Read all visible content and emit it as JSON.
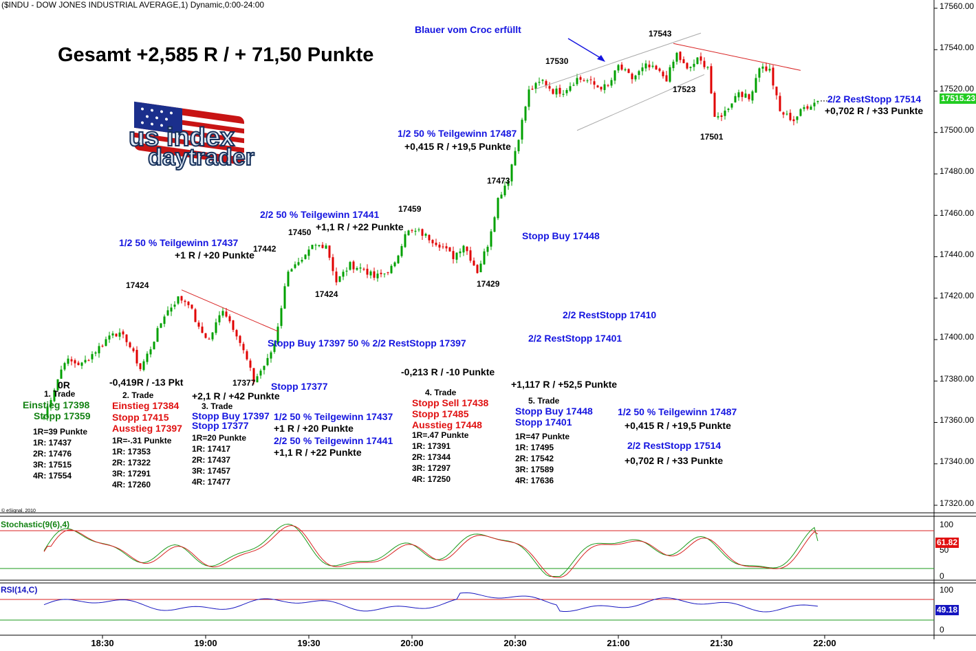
{
  "header": {
    "title": "($INDU - DOW JONES INDUSTRIAL AVERAGE,1) Dynamic,0:00-24:00"
  },
  "headline": "Gesamt +2,585 R / + 71,50 Punkte",
  "logo": {
    "line1": "us index",
    "line2": "daytrader",
    "icon": "us-flag"
  },
  "copyright": "© eSignal, 2010",
  "colors": {
    "up": "#00a000",
    "down": "#e00000",
    "blue_text": "#1515e0",
    "green_text": "#128212",
    "red_text": "#e01010",
    "price_tag": "#22cc22",
    "stoch_tag": "#e01010",
    "rsi_tag": "#1515c0"
  },
  "price_tag": "17515.23",
  "price_axis_ticks": [
    "17560.00",
    "17540.00",
    "17520.00",
    "17500.00",
    "17480.00",
    "17460.00",
    "17440.00",
    "17420.00",
    "17400.00",
    "17380.00",
    "17360.00",
    "17340.00",
    "17320.00"
  ],
  "time_axis_ticks": [
    "18:30",
    "19:00",
    "19:30",
    "20:00",
    "20:30",
    "21:00",
    "21:30",
    "22:00"
  ],
  "stoch": {
    "title": "Stochastic(9(6),4)",
    "ticks": [
      "100",
      "50",
      "0"
    ],
    "value": "61.82"
  },
  "rsi": {
    "title": "RSI(14,C)",
    "ticks": [
      "100",
      "50",
      "0"
    ],
    "value": "49.18"
  },
  "price_labels": [
    {
      "text": "17424"
    },
    {
      "text": "17377"
    },
    {
      "text": "17442"
    },
    {
      "text": "17450"
    },
    {
      "text": "17424"
    },
    {
      "text": "17459"
    },
    {
      "text": "17429"
    },
    {
      "text": "17473"
    },
    {
      "text": "17530"
    },
    {
      "text": "17543"
    },
    {
      "text": "17523"
    },
    {
      "text": "17501"
    }
  ],
  "notes": {
    "blauer": "Blauer vom Croc erfüllt",
    "t1_tg_a": "1/2 50 % Teilgewinn 17437",
    "t1_tg_b": "+1 R / +20 Punkte",
    "t2_tg_a": "2/2 50 % Teilgewinn 17441",
    "t2_tg_b": "+1,1 R / +22 Punkte",
    "t5_tg_a": "1/2 50 % Teilgewinn 17487",
    "t5_tg_b": "+0,415 R / +19,5 Punkte",
    "stopp_buy_448": "Stopp Buy 17448",
    "rest_410": "2/2 RestStopp 17410",
    "rest_401": "2/2 RestStopp 17401",
    "stopp_buy_397": "Stopp Buy 17397  50 % 2/2 RestStopp 17397",
    "stopp_377": "Stopp 17377",
    "minus_0213": "-0,213 R / -10 Punkte",
    "plus_1117": "+1,117 R / +52,5 Punkte",
    "rest_514_a": "2/2 RestStopp 17514",
    "rest_514_b": "+0,702 R / +33 Punkte",
    "zero_r": "0R",
    "minus_0419": "-0,419R / -13 Pkt",
    "plus_21": "+2,1 R / +42 Punkte"
  },
  "trade1": {
    "head": "1. Trade",
    "entry": "Einstieg 17398",
    "stop": "Stopp 17359",
    "lines": [
      "1R=39 Punkte",
      "1R: 17437",
      "2R: 17476",
      "3R: 17515",
      "4R: 17554"
    ]
  },
  "trade2": {
    "head": "2. Trade",
    "entry": "Einstieg 17384",
    "stop": "Stopp 17415",
    "exit": "Ausstieg 17397",
    "lines": [
      "1R=-.31 Punkte",
      "1R: 17353",
      "2R: 17322",
      "3R: 17291",
      "4R: 17260"
    ]
  },
  "trade3": {
    "head": "3. Trade",
    "entry": "Stopp Buy 17397",
    "stop": "Stopp 17377",
    "lines": [
      "1R=20 Punkte",
      "1R: 17417",
      "2R: 17437",
      "3R: 17457",
      "4R: 17477"
    ]
  },
  "trade3_results": {
    "a": "1/2 50 % Teilgewinn 17437",
    "b": "+1 R / +20 Punkte",
    "c": "2/2 50 % Teilgewinn 17441",
    "d": "+1,1 R / +22 Punkte"
  },
  "trade4": {
    "head": "4. Trade",
    "entry": "Stopp Sell 17438",
    "stop": "Stopp 17485",
    "exit": "Ausstieg 17448",
    "lines": [
      "1R=.47 Punkte",
      "1R: 17391",
      "2R: 17344",
      "3R: 17297",
      "4R: 17250"
    ]
  },
  "trade5": {
    "head": "5. Trade",
    "entry": "Stopp Buy 17448",
    "stop": "Stopp 17401",
    "lines": [
      "1R=47 Punkte",
      "1R: 17495",
      "2R: 17542",
      "3R: 17589",
      "4R: 17636"
    ]
  },
  "trade5_results": {
    "a": "1/2 50 % Teilgewinn 17487",
    "b": "+0,415 R / +19,5 Punkte",
    "c": "2/2 RestStopp 17514",
    "d": "+0,702 R / +33 Punkte"
  },
  "chart_data": {
    "type": "candlestick",
    "title": "($INDU - DOW JONES INDUSTRIAL AVERAGE,1) Dynamic,0:00-24:00",
    "interval_minutes": 1,
    "ylim": [
      17315,
      17562
    ],
    "x_start": "18:13",
    "x_end": "21:58",
    "anchors": [
      [
        "18:13",
        17363
      ],
      [
        "18:19",
        17390
      ],
      [
        "18:24",
        17388
      ],
      [
        "18:30",
        17398
      ],
      [
        "18:33",
        17404
      ],
      [
        "18:37",
        17400
      ],
      [
        "18:41",
        17386
      ],
      [
        "18:44",
        17396
      ],
      [
        "18:48",
        17412
      ],
      [
        "18:52",
        17420
      ],
      [
        "18:55",
        17418
      ],
      [
        "18:58",
        17405
      ],
      [
        "19:01",
        17400
      ],
      [
        "19:05",
        17415
      ],
      [
        "19:09",
        17403
      ],
      [
        "19:12",
        17390
      ],
      [
        "19:14",
        17380
      ],
      [
        "19:18",
        17390
      ],
      [
        "19:20",
        17398
      ],
      [
        "19:24",
        17434
      ],
      [
        "19:28",
        17437
      ],
      [
        "19:31",
        17445
      ],
      [
        "19:35",
        17446
      ],
      [
        "19:38",
        17428
      ],
      [
        "19:42",
        17436
      ],
      [
        "19:46",
        17434
      ],
      [
        "19:49",
        17430
      ],
      [
        "19:52",
        17432
      ],
      [
        "19:55",
        17436
      ],
      [
        "19:58",
        17452
      ],
      [
        "20:02",
        17452
      ],
      [
        "20:05",
        17449
      ],
      [
        "20:08",
        17446
      ],
      [
        "20:12",
        17440
      ],
      [
        "20:15",
        17446
      ],
      [
        "20:19",
        17433
      ],
      [
        "20:22",
        17446
      ],
      [
        "20:25",
        17468
      ],
      [
        "20:28",
        17478
      ],
      [
        "20:31",
        17498
      ],
      [
        "20:34",
        17520
      ],
      [
        "20:38",
        17525
      ],
      [
        "20:41",
        17520
      ],
      [
        "20:44",
        17520
      ],
      [
        "20:48",
        17526
      ],
      [
        "20:51",
        17525
      ],
      [
        "20:54",
        17522
      ],
      [
        "20:57",
        17522
      ],
      [
        "21:00",
        17532
      ],
      [
        "21:04",
        17526
      ],
      [
        "21:08",
        17532
      ],
      [
        "21:11",
        17530
      ],
      [
        "21:14",
        17526
      ],
      [
        "21:17",
        17538
      ],
      [
        "21:20",
        17530
      ],
      [
        "21:23",
        17535
      ],
      [
        "21:26",
        17532
      ],
      [
        "21:28",
        17506
      ],
      [
        "21:31",
        17510
      ],
      [
        "21:35",
        17520
      ],
      [
        "21:38",
        17516
      ],
      [
        "21:41",
        17532
      ],
      [
        "21:44",
        17530
      ],
      [
        "21:47",
        17510
      ],
      [
        "21:51",
        17506
      ],
      [
        "21:54",
        17512
      ],
      [
        "21:58",
        17515.23
      ]
    ],
    "annotated_levels": [
      17424,
      17377,
      17442,
      17450,
      17424,
      17459,
      17429,
      17473,
      17530,
      17543,
      17523,
      17501
    ],
    "trendlines": [
      {
        "color": "red",
        "from": [
          "18:53",
          17424
        ],
        "to": [
          "19:21",
          17404
        ]
      },
      {
        "color": "red",
        "from": [
          "21:16",
          17543
        ],
        "to": [
          "21:53",
          17530
        ]
      },
      {
        "color": "gray",
        "from": [
          "20:36",
          17521
        ],
        "to": [
          "21:24",
          17548
        ]
      },
      {
        "color": "gray",
        "from": [
          "20:48",
          17501
        ],
        "to": [
          "21:25",
          17528
        ]
      }
    ],
    "indicators": [
      {
        "name": "Stochastic(9(6),4)",
        "levels": [
          80,
          20
        ],
        "last": 61.82
      },
      {
        "name": "RSI(14,C)",
        "levels": [
          70,
          30
        ],
        "last": 49.18
      }
    ]
  }
}
